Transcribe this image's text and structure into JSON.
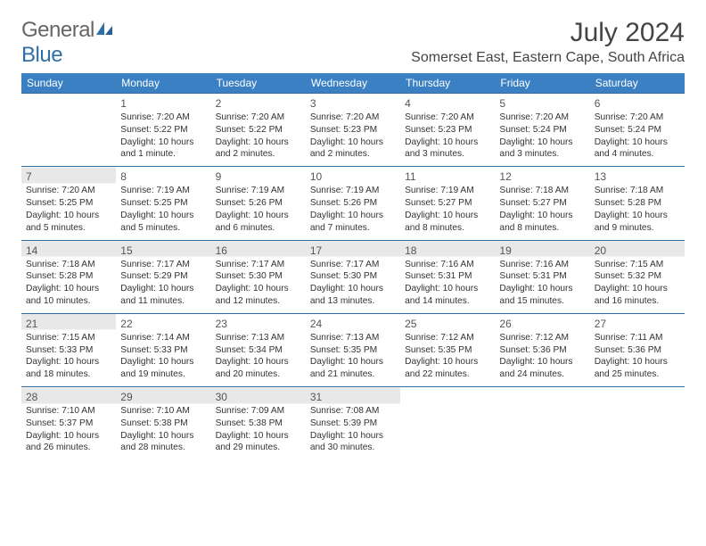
{
  "logo": {
    "general": "General",
    "blue": "Blue"
  },
  "header": {
    "month_title": "July 2024",
    "location": "Somerset East, Eastern Cape, South Africa"
  },
  "colors": {
    "header_bg": "#3a80c3",
    "row_border": "#2f6fa8",
    "grey_cell": "#e8e8e8",
    "logo_blue": "#2f6fa8",
    "text": "#333333"
  },
  "days_of_week": [
    "Sunday",
    "Monday",
    "Tuesday",
    "Wednesday",
    "Thursday",
    "Friday",
    "Saturday"
  ],
  "weeks": [
    [
      null,
      {
        "n": "1",
        "sunrise": "7:20 AM",
        "sunset": "5:22 PM",
        "daylight": "10 hours and 1 minute."
      },
      {
        "n": "2",
        "sunrise": "7:20 AM",
        "sunset": "5:22 PM",
        "daylight": "10 hours and 2 minutes."
      },
      {
        "n": "3",
        "sunrise": "7:20 AM",
        "sunset": "5:23 PM",
        "daylight": "10 hours and 2 minutes."
      },
      {
        "n": "4",
        "sunrise": "7:20 AM",
        "sunset": "5:23 PM",
        "daylight": "10 hours and 3 minutes."
      },
      {
        "n": "5",
        "sunrise": "7:20 AM",
        "sunset": "5:24 PM",
        "daylight": "10 hours and 3 minutes."
      },
      {
        "n": "6",
        "sunrise": "7:20 AM",
        "sunset": "5:24 PM",
        "daylight": "10 hours and 4 minutes."
      }
    ],
    [
      {
        "n": "7",
        "sunrise": "7:20 AM",
        "sunset": "5:25 PM",
        "daylight": "10 hours and 5 minutes."
      },
      {
        "n": "8",
        "sunrise": "7:19 AM",
        "sunset": "5:25 PM",
        "daylight": "10 hours and 5 minutes."
      },
      {
        "n": "9",
        "sunrise": "7:19 AM",
        "sunset": "5:26 PM",
        "daylight": "10 hours and 6 minutes."
      },
      {
        "n": "10",
        "sunrise": "7:19 AM",
        "sunset": "5:26 PM",
        "daylight": "10 hours and 7 minutes."
      },
      {
        "n": "11",
        "sunrise": "7:19 AM",
        "sunset": "5:27 PM",
        "daylight": "10 hours and 8 minutes."
      },
      {
        "n": "12",
        "sunrise": "7:18 AM",
        "sunset": "5:27 PM",
        "daylight": "10 hours and 8 minutes."
      },
      {
        "n": "13",
        "sunrise": "7:18 AM",
        "sunset": "5:28 PM",
        "daylight": "10 hours and 9 minutes."
      }
    ],
    [
      {
        "n": "14",
        "sunrise": "7:18 AM",
        "sunset": "5:28 PM",
        "daylight": "10 hours and 10 minutes."
      },
      {
        "n": "15",
        "sunrise": "7:17 AM",
        "sunset": "5:29 PM",
        "daylight": "10 hours and 11 minutes."
      },
      {
        "n": "16",
        "sunrise": "7:17 AM",
        "sunset": "5:30 PM",
        "daylight": "10 hours and 12 minutes."
      },
      {
        "n": "17",
        "sunrise": "7:17 AM",
        "sunset": "5:30 PM",
        "daylight": "10 hours and 13 minutes."
      },
      {
        "n": "18",
        "sunrise": "7:16 AM",
        "sunset": "5:31 PM",
        "daylight": "10 hours and 14 minutes."
      },
      {
        "n": "19",
        "sunrise": "7:16 AM",
        "sunset": "5:31 PM",
        "daylight": "10 hours and 15 minutes."
      },
      {
        "n": "20",
        "sunrise": "7:15 AM",
        "sunset": "5:32 PM",
        "daylight": "10 hours and 16 minutes."
      }
    ],
    [
      {
        "n": "21",
        "sunrise": "7:15 AM",
        "sunset": "5:33 PM",
        "daylight": "10 hours and 18 minutes."
      },
      {
        "n": "22",
        "sunrise": "7:14 AM",
        "sunset": "5:33 PM",
        "daylight": "10 hours and 19 minutes."
      },
      {
        "n": "23",
        "sunrise": "7:13 AM",
        "sunset": "5:34 PM",
        "daylight": "10 hours and 20 minutes."
      },
      {
        "n": "24",
        "sunrise": "7:13 AM",
        "sunset": "5:35 PM",
        "daylight": "10 hours and 21 minutes."
      },
      {
        "n": "25",
        "sunrise": "7:12 AM",
        "sunset": "5:35 PM",
        "daylight": "10 hours and 22 minutes."
      },
      {
        "n": "26",
        "sunrise": "7:12 AM",
        "sunset": "5:36 PM",
        "daylight": "10 hours and 24 minutes."
      },
      {
        "n": "27",
        "sunrise": "7:11 AM",
        "sunset": "5:36 PM",
        "daylight": "10 hours and 25 minutes."
      }
    ],
    [
      {
        "n": "28",
        "sunrise": "7:10 AM",
        "sunset": "5:37 PM",
        "daylight": "10 hours and 26 minutes."
      },
      {
        "n": "29",
        "sunrise": "7:10 AM",
        "sunset": "5:38 PM",
        "daylight": "10 hours and 28 minutes."
      },
      {
        "n": "30",
        "sunrise": "7:09 AM",
        "sunset": "5:38 PM",
        "daylight": "10 hours and 29 minutes."
      },
      {
        "n": "31",
        "sunrise": "7:08 AM",
        "sunset": "5:39 PM",
        "daylight": "10 hours and 30 minutes."
      },
      null,
      null,
      null
    ]
  ],
  "labels": {
    "sunrise": "Sunrise:",
    "sunset": "Sunset:",
    "daylight": "Daylight:"
  }
}
